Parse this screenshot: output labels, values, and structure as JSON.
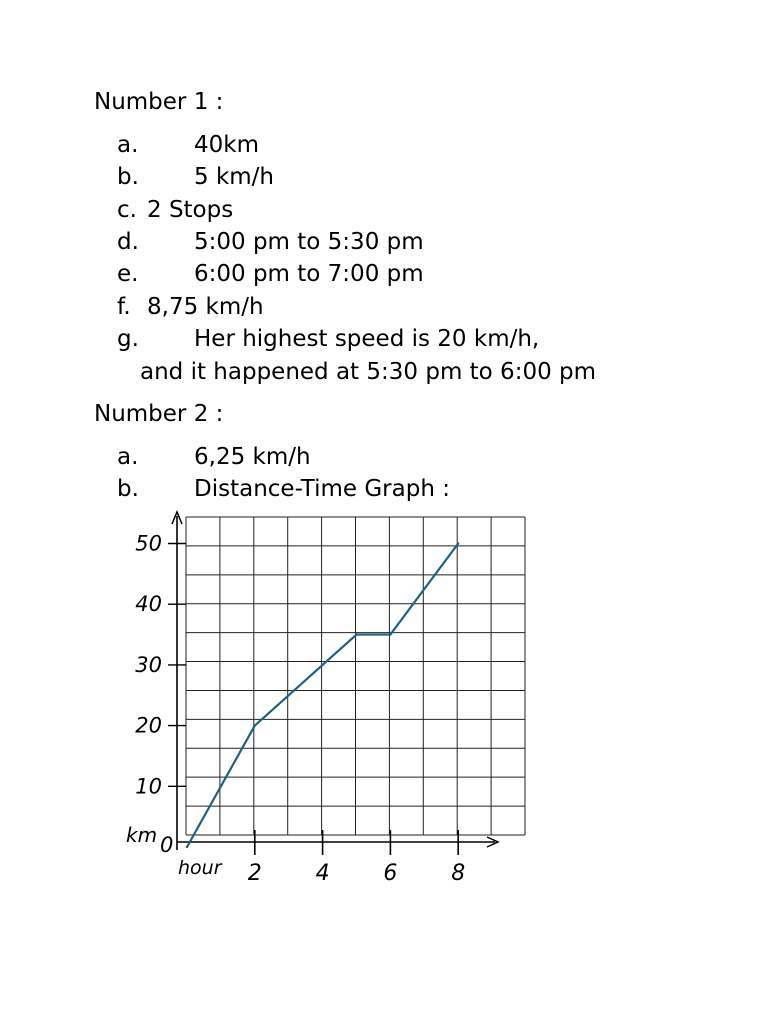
{
  "number1": {
    "heading": "Number 1 :",
    "items": [
      {
        "marker": "a.",
        "text": "40km"
      },
      {
        "marker": "b.",
        "text": "5 km/h"
      },
      {
        "marker": "c.",
        "text": "2 Stops"
      },
      {
        "marker": "d.",
        "text": "5:00 pm to 5:30 pm"
      },
      {
        "marker": "e.",
        "text": "6:00 pm to 7:00 pm"
      },
      {
        "marker": "f.",
        "text": "8,75 km/h"
      },
      {
        "marker": "g.",
        "text": "Her highest speed is 20 km/h,",
        "continuation": "and it happened at 5:30 pm to 6:00 pm"
      }
    ]
  },
  "number2": {
    "heading": "Number 2 :",
    "items": [
      {
        "marker": "a.",
        "text": "6,25 km/h"
      },
      {
        "marker": "b.",
        "text": "Distance-Time Graph :"
      }
    ]
  },
  "chart_data": {
    "type": "line",
    "title": "",
    "xlabel": "hour",
    "ylabel": "km",
    "x_ticks": [
      "2",
      "4",
      "6",
      "8"
    ],
    "y_ticks": [
      "10",
      "20",
      "30",
      "40",
      "50"
    ],
    "origin_label": "0",
    "xlim": [
      0,
      10
    ],
    "ylim": [
      0,
      55
    ],
    "grid": true,
    "line_color": "#1f5f86",
    "series": [
      {
        "name": "",
        "x": [
          0,
          2,
          5,
          6,
          8
        ],
        "y": [
          0,
          20,
          35,
          35,
          50
        ]
      }
    ]
  }
}
